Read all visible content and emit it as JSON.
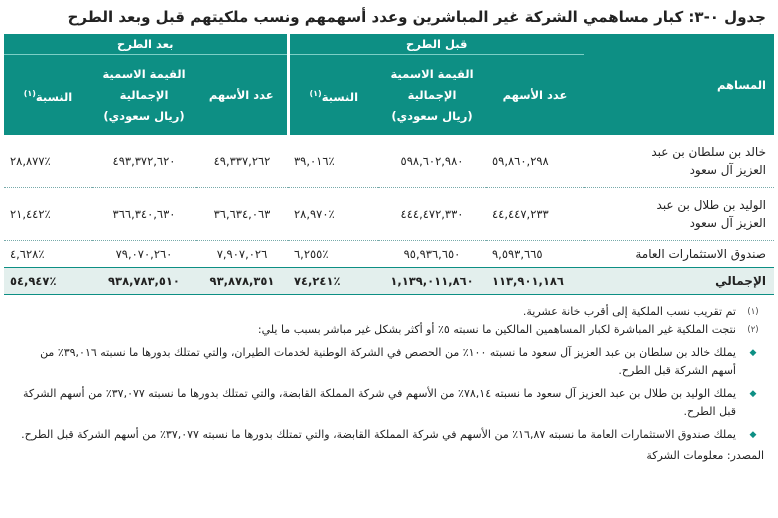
{
  "title": "جدول ٠-٣: كبار مساهمي الشركة غير المباشرين وعدد أسهمهم ونسب ملكيتهم قبل وبعد الطرح",
  "table": {
    "shareholder_header": "المساهم",
    "before_header": "قبل الطرح",
    "after_header": "بعد الطرح",
    "col_shares": "عدد الأسهم",
    "col_value_line1": "القيمة الاسمية",
    "col_value_line2": "الإجمالية",
    "col_value_line3": "(ريال سعودي)",
    "col_percent": "النسبة",
    "col_percent_note": "(١)",
    "rows": [
      {
        "name_line1": "خالد بن سلطان بن عبد",
        "name_line2": "العزيز آل سعود",
        "shares_before": "٥٩,٨٦٠,٢٩٨",
        "value_before": "٥٩٨,٦٠٢,٩٨٠",
        "pct_before": "٣٩,٠١٦٪",
        "shares_after": "٤٩,٣٣٧,٢٦٢",
        "value_after": "٤٩٣,٣٧٢,٦٢٠",
        "pct_after": "٢٨,٨٧٧٪"
      },
      {
        "name_line1": "الوليد بن طلال بن عبد",
        "name_line2": "العزيز آل سعود",
        "shares_before": "٤٤,٤٤٧,٢٣٣",
        "value_before": "٤٤٤,٤٧٢,٣٣٠",
        "pct_before": "٢٨,٩٧٠٪",
        "shares_after": "٣٦,٦٣٤,٠٦٣",
        "value_after": "٣٦٦,٣٤٠,٦٣٠",
        "pct_after": "٢١,٤٤٢٪"
      },
      {
        "name_line1": "صندوق الاستثمارات العامة",
        "name_line2": "",
        "shares_before": "٩,٥٩٣,٦٦٥",
        "value_before": "٩٥,٩٣٦,٦٥٠",
        "pct_before": "٦,٢٥٥٪",
        "shares_after": "٧,٩٠٧,٠٢٦",
        "value_after": "٧٩,٠٧٠,٢٦٠",
        "pct_after": "٤,٦٢٨٪"
      }
    ],
    "total": {
      "label": "الإجمالي",
      "shares_before": "١١٣,٩٠١,١٨٦",
      "value_before": "١,١٣٩,٠١١,٨٦٠",
      "pct_before": "٧٤,٢٤١٪",
      "shares_after": "٩٣,٨٧٨,٣٥١",
      "value_after": "٩٣٨,٧٨٣,٥١٠",
      "pct_after": "٥٤,٩٤٧٪"
    }
  },
  "notes": {
    "n1_marker": "(١)",
    "n1_text": "تم تقريب نسب الملكية إلى أقرب خانة عشرية.",
    "n2_marker": "(٢)",
    "n2_text": "نتجت الملكية غير المباشرة لكبار المساهمين المالكين ما نسبته ٥٪ أو أكثر بشكل غير مباشر بسبب ما يلي:",
    "bullet_marker": "◆",
    "bullets": [
      "يملك خالد بن سلطان بن عبد العزيز آل سعود ما نسبته ١٠٠٪ من الحصص في الشركة الوطنية لخدمات الطيران، والتي تمتلك بدورها ما نسبته ٣٩,٠١٦٪ من أسهم الشركة قبل الطرح.",
      "يملك الوليد بن طلال بن عبد العزيز آل سعود ما نسبته ٧٨,١٤٪ من الأسهم في شركة المملكة القابضة، والتي تمتلك بدورها ما نسبته ٣٧,٠٧٧٪ من أسهم الشركة قبل الطرح.",
      "يملك صندوق الاستثمارات العامة ما نسبته ١٦,٨٧٪ من الأسهم في شركة المملكة القابضة، والتي تمتلك بدورها ما نسبته ٣٧,٠٧٧٪ من أسهم الشركة قبل الطرح."
    ],
    "source": "المصدر: معلومات الشركة"
  }
}
